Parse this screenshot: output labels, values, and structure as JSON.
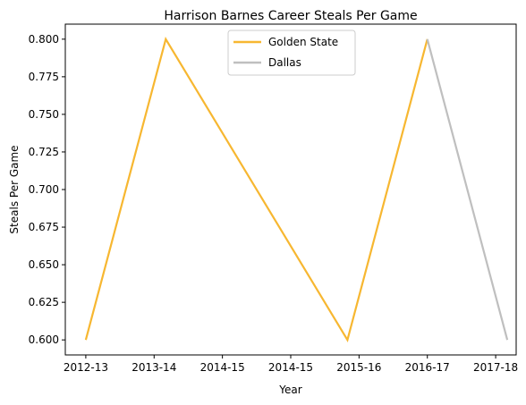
{
  "chart_data": {
    "type": "line",
    "title": "Harrison Barnes Career Steals Per Game",
    "xlabel": "Year",
    "ylabel": "Steals Per Game",
    "x_ticks": [
      "2012-13",
      "2013-14",
      "2014-15",
      "2014-15",
      "2015-16",
      "2016-17",
      "2017-18"
    ],
    "x_range": [
      -0.3,
      6.3
    ],
    "ylim": [
      0.59,
      0.81
    ],
    "y_ticks": [
      0.6,
      0.625,
      0.65,
      0.675,
      0.7,
      0.725,
      0.75,
      0.775,
      0.8
    ],
    "y_tick_labels": [
      "0.600",
      "0.625",
      "0.650",
      "0.675",
      "0.700",
      "0.725",
      "0.750",
      "0.775",
      "0.800"
    ],
    "grid": false,
    "legend_placement": "upper center",
    "series": [
      {
        "name": "Golden State",
        "color": "#f7b731",
        "points": [
          {
            "x": 0,
            "y": 0.6
          },
          {
            "x": 1.17,
            "y": 0.8
          },
          {
            "x": 3.83,
            "y": 0.6
          },
          {
            "x": 5.0,
            "y": 0.8
          }
        ]
      },
      {
        "name": "Dallas",
        "color": "#bfbfbf",
        "points": [
          {
            "x": 5.0,
            "y": 0.8
          },
          {
            "x": 6.17,
            "y": 0.6
          }
        ]
      }
    ]
  }
}
